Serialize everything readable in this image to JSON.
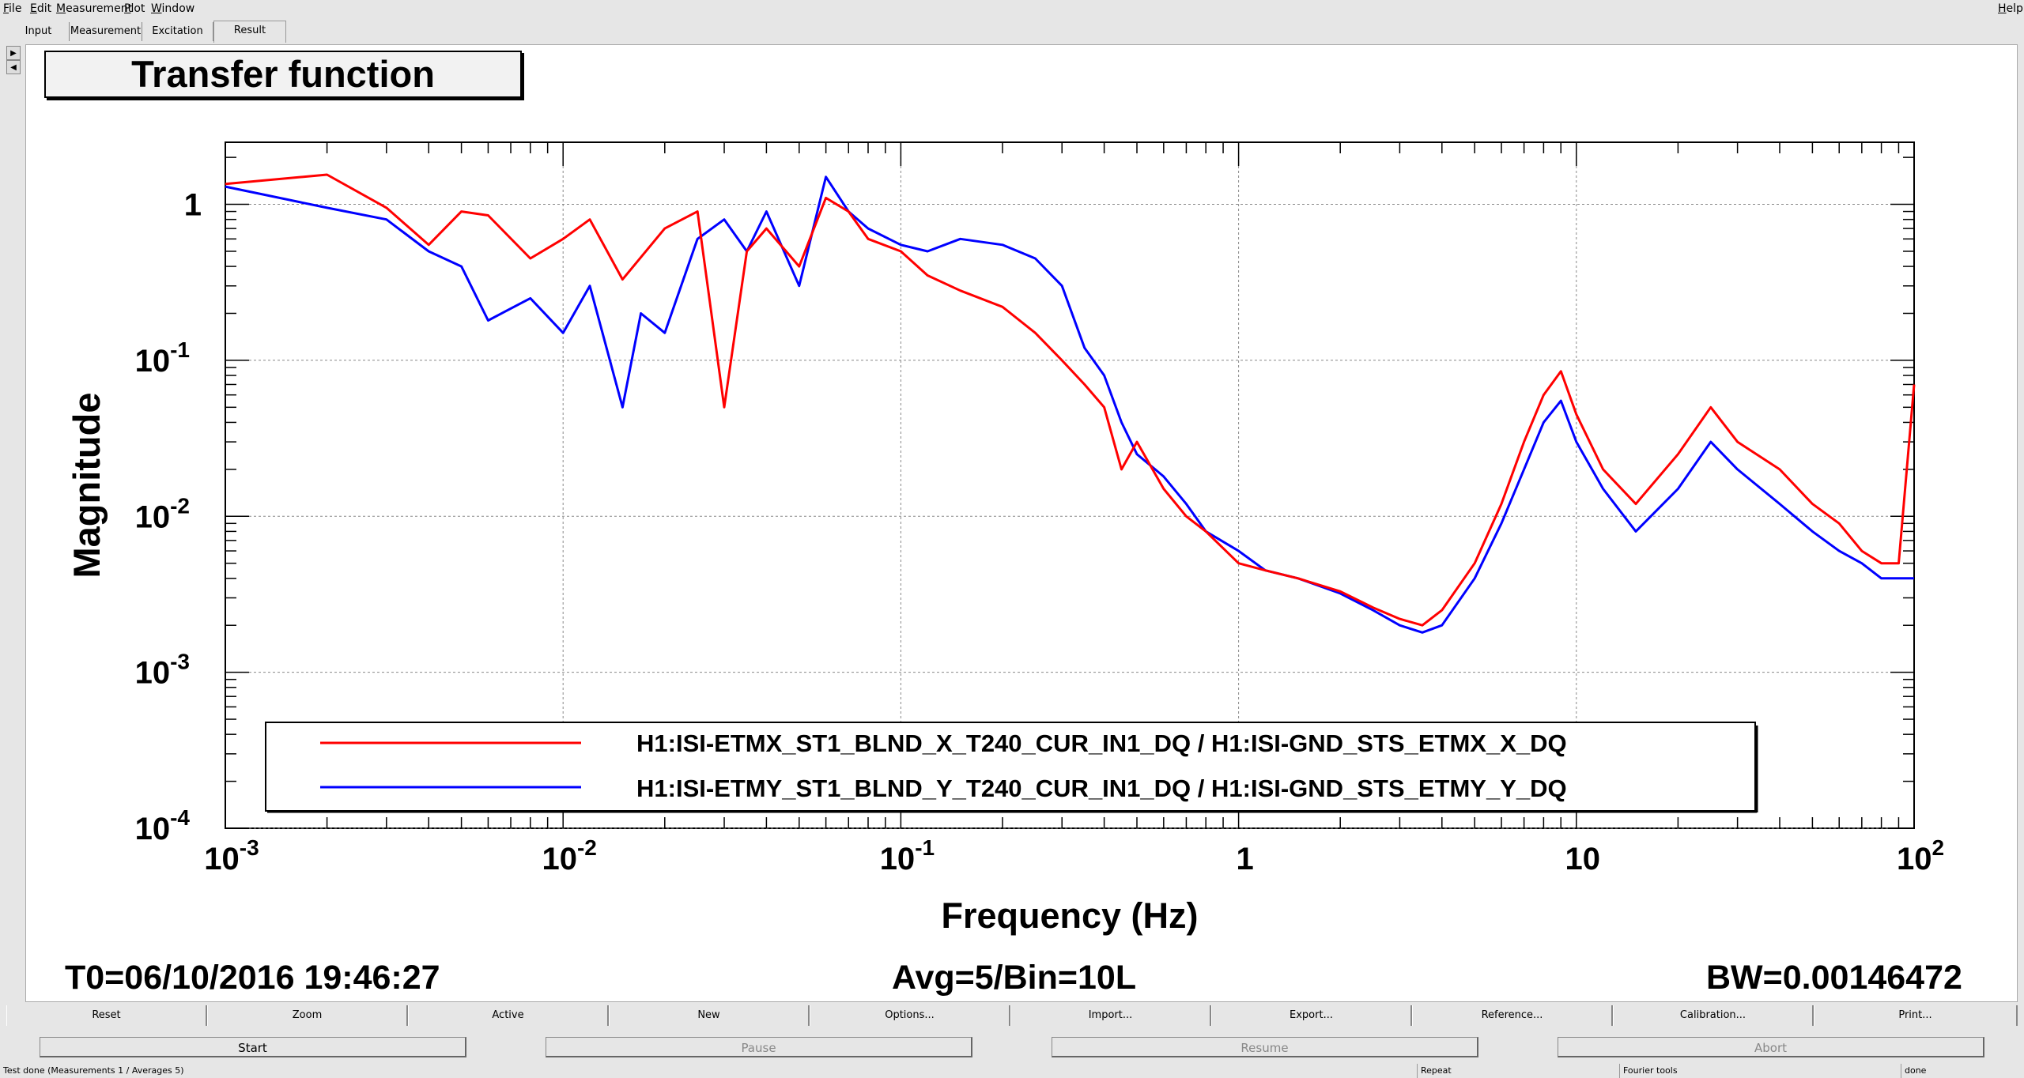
{
  "menu": {
    "file": "File",
    "edit": "Edit",
    "measurement": "Measurement",
    "plot": "Plot",
    "window": "Window",
    "help": "Help"
  },
  "tabs": [
    {
      "label": "Input"
    },
    {
      "label": "Measurement"
    },
    {
      "label": "Excitation"
    },
    {
      "label": "Result"
    }
  ],
  "plot": {
    "title": "Transfer function",
    "t0": "T0=06/10/2016 19:46:27",
    "avg": "Avg=5/Bin=10L",
    "bw": "BW=0.00146472"
  },
  "colors": {
    "series1": "#ff0000",
    "series2": "#0000ff"
  },
  "chart_data": {
    "type": "line",
    "title": "Transfer function",
    "xlabel": "Frequency (Hz)",
    "ylabel": "Magnitude",
    "xscale": "log",
    "yscale": "log",
    "xlim": [
      0.001,
      100
    ],
    "ylim": [
      0.0001,
      2.5
    ],
    "grid": true,
    "legend_position": "bottom-center",
    "x_ticks": [
      0.001,
      0.01,
      0.1,
      1,
      10,
      100
    ],
    "x_tick_labels": [
      {
        "base": "10",
        "exp": "-3"
      },
      {
        "base": "10",
        "exp": "-2"
      },
      {
        "base": "10",
        "exp": "-1"
      },
      {
        "base": "1",
        "exp": ""
      },
      {
        "base": "10",
        "exp": ""
      },
      {
        "base": "10",
        "exp": "2"
      }
    ],
    "y_ticks": [
      1,
      0.1,
      0.01,
      0.001,
      0.0001
    ],
    "y_tick_labels": [
      {
        "base": "1",
        "exp": ""
      },
      {
        "base": "10",
        "exp": "-1"
      },
      {
        "base": "10",
        "exp": "-2"
      },
      {
        "base": "10",
        "exp": "-3"
      },
      {
        "base": "10",
        "exp": "-4"
      }
    ],
    "series": [
      {
        "name": "H1:ISI-ETMX_ST1_BLND_X_T240_CUR_IN1_DQ / H1:ISI-GND_STS_ETMX_X_DQ",
        "x": [
          0.001,
          0.002,
          0.003,
          0.004,
          0.005,
          0.006,
          0.008,
          0.01,
          0.012,
          0.015,
          0.02,
          0.025,
          0.03,
          0.035,
          0.04,
          0.05,
          0.06,
          0.07,
          0.08,
          0.1,
          0.12,
          0.15,
          0.2,
          0.25,
          0.3,
          0.35,
          0.4,
          0.45,
          0.5,
          0.6,
          0.7,
          0.8,
          1,
          1.2,
          1.5,
          2,
          2.5,
          3,
          3.5,
          4,
          5,
          6,
          7,
          8,
          9,
          10,
          12,
          15,
          20,
          25,
          30,
          40,
          50,
          60,
          70,
          80,
          90,
          100
        ],
        "y": [
          1.35,
          1.55,
          0.95,
          0.55,
          0.9,
          0.85,
          0.45,
          0.6,
          0.8,
          0.33,
          0.7,
          0.9,
          0.05,
          0.5,
          0.7,
          0.4,
          1.1,
          0.9,
          0.6,
          0.5,
          0.35,
          0.28,
          0.22,
          0.15,
          0.1,
          0.07,
          0.05,
          0.02,
          0.03,
          0.015,
          0.01,
          0.008,
          0.005,
          0.0045,
          0.004,
          0.0033,
          0.0026,
          0.0022,
          0.002,
          0.0025,
          0.005,
          0.012,
          0.03,
          0.06,
          0.085,
          0.045,
          0.02,
          0.012,
          0.025,
          0.05,
          0.03,
          0.02,
          0.012,
          0.009,
          0.006,
          0.005,
          0.005,
          0.07
        ]
      },
      {
        "name": "H1:ISI-ETMY_ST1_BLND_Y_T240_CUR_IN1_DQ / H1:ISI-GND_STS_ETMY_Y_DQ",
        "x": [
          0.001,
          0.002,
          0.003,
          0.004,
          0.005,
          0.006,
          0.008,
          0.01,
          0.012,
          0.015,
          0.017,
          0.02,
          0.025,
          0.03,
          0.035,
          0.04,
          0.05,
          0.06,
          0.07,
          0.08,
          0.1,
          0.12,
          0.15,
          0.2,
          0.25,
          0.3,
          0.35,
          0.4,
          0.45,
          0.5,
          0.6,
          0.7,
          0.8,
          1,
          1.2,
          1.5,
          2,
          2.5,
          3,
          3.5,
          4,
          5,
          6,
          7,
          8,
          9,
          10,
          12,
          15,
          20,
          25,
          30,
          40,
          50,
          60,
          70,
          80,
          90,
          100
        ],
        "y": [
          1.3,
          0.95,
          0.8,
          0.5,
          0.4,
          0.18,
          0.25,
          0.15,
          0.3,
          0.05,
          0.2,
          0.15,
          0.6,
          0.8,
          0.5,
          0.9,
          0.3,
          1.5,
          0.9,
          0.7,
          0.55,
          0.5,
          0.6,
          0.55,
          0.45,
          0.3,
          0.12,
          0.08,
          0.04,
          0.025,
          0.018,
          0.012,
          0.008,
          0.006,
          0.0045,
          0.004,
          0.0032,
          0.0025,
          0.002,
          0.0018,
          0.002,
          0.004,
          0.009,
          0.02,
          0.04,
          0.055,
          0.03,
          0.015,
          0.008,
          0.015,
          0.03,
          0.02,
          0.012,
          0.008,
          0.006,
          0.005,
          0.004,
          0.004,
          0.004
        ]
      }
    ]
  },
  "buttons_row1": [
    {
      "label": "Reset"
    },
    {
      "label": "Zoom"
    },
    {
      "label": "Active"
    },
    {
      "label": "New"
    },
    {
      "label": "Options..."
    },
    {
      "label": "Import..."
    },
    {
      "label": "Export..."
    },
    {
      "label": "Reference..."
    },
    {
      "label": "Calibration..."
    },
    {
      "label": "Print..."
    }
  ],
  "buttons_row2": [
    {
      "label": "Start",
      "enabled": true
    },
    {
      "label": "Pause",
      "enabled": false
    },
    {
      "label": "Resume",
      "enabled": false
    },
    {
      "label": "Abort",
      "enabled": false
    }
  ],
  "status": {
    "message": "Test done (Measurements 1 / Averages 5)",
    "repeat": "Repeat",
    "tools": "Fourier tools",
    "state": "done"
  }
}
